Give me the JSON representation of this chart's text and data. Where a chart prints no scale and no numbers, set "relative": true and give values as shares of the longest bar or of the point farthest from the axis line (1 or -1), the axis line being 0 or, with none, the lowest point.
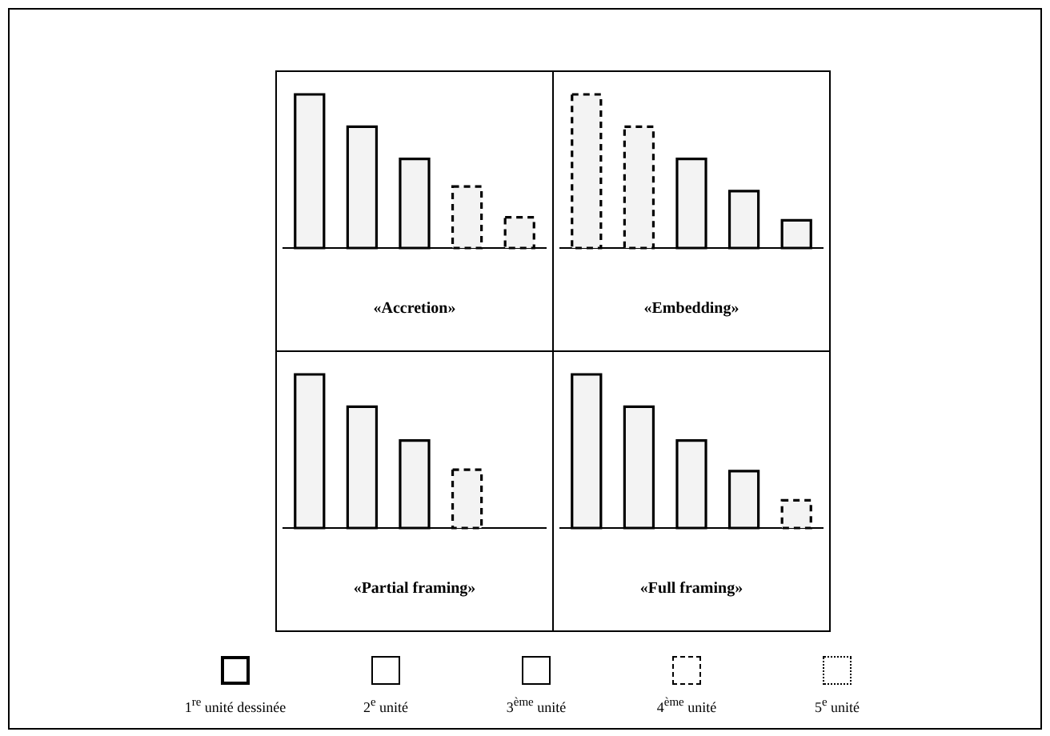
{
  "chart_data": [
    {
      "type": "bar",
      "title": "«Accretion»",
      "relative": true,
      "stacked": true,
      "categories": [
        null,
        null,
        null,
        null,
        null
      ],
      "series": [
        {
          "color": "#f3f3f3",
          "line_style": "solid",
          "values": [
            1,
            0.79,
            0.58,
            0,
            0
          ]
        },
        {
          "color": "#f3f3f3",
          "line_style": "dashed",
          "values": [
            0,
            0,
            0,
            0.4,
            0.2
          ]
        }
      ]
    },
    {
      "type": "bar",
      "title": "«Embedding»",
      "relative": true,
      "stacked": true,
      "categories": [
        null,
        null,
        null,
        null,
        null
      ],
      "series": [
        {
          "color": "#f3f3f3",
          "line_style": "dashed",
          "values": [
            1,
            0.79,
            0,
            0,
            0
          ]
        },
        {
          "color": "#f3f3f3",
          "line_style": "solid",
          "values": [
            0,
            0,
            0.58,
            0.37,
            0.18
          ]
        }
      ]
    },
    {
      "type": "bar",
      "title": "«Partial framing»",
      "relative": true,
      "stacked": true,
      "categories": [
        null,
        null,
        null,
        null,
        null
      ],
      "series": [
        {
          "color": "#f3f3f3",
          "line_style": "solid",
          "values": [
            1,
            0.79,
            0.57,
            0,
            0
          ]
        },
        {
          "color": "#f3f3f3",
          "line_style": "dashed",
          "values": [
            0,
            0,
            0,
            0.38,
            0
          ]
        }
      ]
    },
    {
      "type": "bar",
      "title": "«Full framing»",
      "relative": true,
      "stacked": true,
      "categories": [
        null,
        null,
        null,
        null,
        null
      ],
      "series": [
        {
          "color": "#f3f3f3",
          "line_style": "solid",
          "values": [
            1,
            0.79,
            0.57,
            0.37,
            0
          ]
        },
        {
          "color": "#f3f3f3",
          "line_style": "dashed",
          "values": [
            0,
            0,
            0,
            0,
            0.18
          ]
        }
      ]
    },
    {
      "type": "other",
      "annotations": [
        "1$^{re}$ unité dessinée",
        "2$^{e}$ unité",
        "3$^{ème}$ unité",
        "4$^{ème}$ unité",
        "5$^{e}$ unité"
      ]
    }
  ]
}
